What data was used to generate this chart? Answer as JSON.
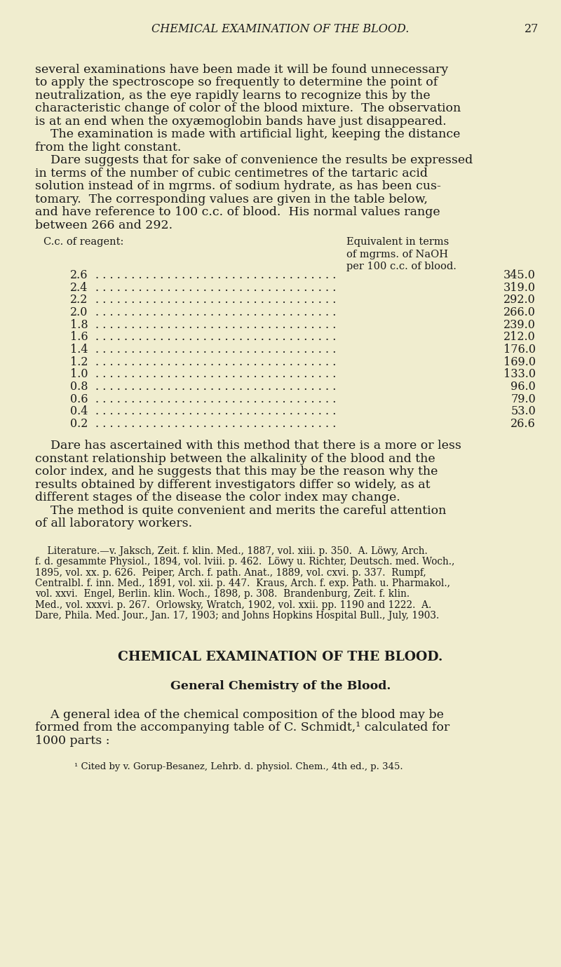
{
  "bg_color": "#f0edcf",
  "text_color": "#1a1a1a",
  "page_width": 8.0,
  "page_height": 13.79,
  "dpi": 100,
  "header_text": "CHEMICAL EXAMINATION OF THE BLOOD.",
  "header_page": "27",
  "para1_lines": [
    "several examinations have been made it will be found unnecessary",
    "to apply the spectroscope so frequently to determine the point of",
    "neutralization, as the eye rapidly learns to recognize this by the",
    "characteristic change of color of the blood mixture.  The observation",
    "is at an end when the oxyæmoglobin bands have just disappeared."
  ],
  "para2_lines": [
    "    The examination is made with artificial light, keeping the distance",
    "from the light constant."
  ],
  "para3_lines": [
    "    Dare suggests that for sake of convenience the results be expressed",
    "in terms of the number of cubic centimetres of the tartaric acid",
    "solution instead of in mgrms. of sodium hydrate, as has been cus-",
    "tomary.  The corresponding values are given in the table below,",
    "and have reference to 100 c.c. of blood.  His normal values range",
    "between 266 and 292."
  ],
  "table_col1_label": "C.c. of reagent:",
  "table_col2_label_line1": "Equivalent in terms",
  "table_col2_label_line2": "of mgrms. of NaOH",
  "table_col2_label_line3": "per 100 c.c. of blood.",
  "table_data": [
    [
      "2.6",
      "345.0"
    ],
    [
      "2.4",
      "319.0"
    ],
    [
      "2.2",
      "292.0"
    ],
    [
      "2.0",
      "266.0"
    ],
    [
      "1.8",
      "239.0"
    ],
    [
      "1.6",
      "212.0"
    ],
    [
      "1.4",
      "176.0"
    ],
    [
      "1.2",
      "169.0"
    ],
    [
      "1.0",
      "133.0"
    ],
    [
      "0.8",
      "96.0"
    ],
    [
      "0.6",
      "79.0"
    ],
    [
      "0.4",
      "53.0"
    ],
    [
      "0.2",
      "26.6"
    ]
  ],
  "para4_lines": [
    "    Dare has ascertained with this method that there is a more or less",
    "constant relationship between the alkalinity of the blood and the",
    "color index, and he suggests that this may be the reason why the",
    "results obtained by different investigators differ so widely, as at",
    "different stages of the disease the color index may change."
  ],
  "para5_lines": [
    "    The method is quite convenient and merits the careful attention",
    "of all laboratory workers."
  ],
  "lit_lines": [
    "    Literature.—v. Jaksch, Zeit. f. klin. Med., 1887, vol. xiii. p. 350.  A. Löwy, Arch.",
    "f. d. gesammte Physiol., 1894, vol. lviii. p. 462.  Löwy u. Richter, Deutsch. med. Woch.,",
    "1895, vol. xx. p. 626.  Peiper, Arch. f. path. Anat., 1889, vol. cxvi. p. 337.  Rumpf,",
    "Centralbl. f. inn. Med., 1891, vol. xii. p. 447.  Kraus, Arch. f. exp. Path. u. Pharmakol.,",
    "vol. xxvi.  Engel, Berlin. klin. Woch., 1898, p. 308.  Brandenburg, Zeit. f. klin.",
    "Med., vol. xxxvi. p. 267.  Orlowsky, Wratch, 1902, vol. xxii. pp. 1190 and 1222.  A.",
    "Dare, Phila. Med. Jour., Jan. 17, 1903; and Johns Hopkins Hospital Bull., July, 1903."
  ],
  "section_title": "CHEMICAL EXAMINATION OF THE BLOOD.",
  "section_subtitle": "General Chemistry of the Blood.",
  "section_para_lines": [
    "    A general idea of the chemical composition of the blood may be",
    "formed from the accompanying table of C. Schmidt,¹ calculated for",
    "1000 parts :"
  ],
  "footnote": "¹ Cited by v. Gorup-Besanez, Lehrb. d. physiol. Chem., 4th ed., p. 345."
}
